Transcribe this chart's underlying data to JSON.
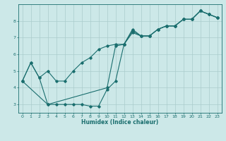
{
  "xlabel": "Humidex (Indice chaleur)",
  "background_color": "#cce8e8",
  "grid_color": "#aacccc",
  "line_color": "#1a6e6e",
  "xlim": [
    -0.5,
    23.5
  ],
  "ylim": [
    2.5,
    9.0
  ],
  "xticks": [
    0,
    1,
    2,
    3,
    4,
    5,
    6,
    7,
    8,
    9,
    10,
    11,
    12,
    13,
    14,
    15,
    16,
    17,
    18,
    19,
    20,
    21,
    22,
    23
  ],
  "yticks": [
    3,
    4,
    5,
    6,
    7,
    8
  ],
  "series": [
    {
      "x": [
        0,
        1,
        2,
        3,
        4,
        5,
        6,
        7,
        8,
        9,
        10,
        11,
        12,
        13,
        14,
        15,
        16,
        17,
        18,
        19,
        20,
        21,
        22,
        23
      ],
      "y": [
        4.4,
        5.5,
        4.6,
        5.0,
        4.4,
        4.4,
        5.0,
        5.5,
        5.8,
        6.3,
        6.5,
        6.6,
        6.6,
        7.5,
        7.1,
        7.1,
        7.5,
        7.7,
        7.7,
        8.1,
        8.1,
        8.6,
        8.4,
        8.2
      ]
    },
    {
      "x": [
        0,
        1,
        2,
        3,
        4,
        5,
        6,
        7,
        8,
        9,
        10,
        11,
        12,
        13,
        14,
        15,
        16,
        17,
        18,
        19,
        20,
        21,
        22,
        23
      ],
      "y": [
        4.4,
        5.5,
        4.6,
        3.0,
        3.0,
        3.0,
        3.0,
        3.0,
        2.9,
        2.9,
        3.9,
        4.4,
        6.6,
        7.3,
        7.1,
        7.1,
        7.5,
        7.7,
        7.7,
        8.1,
        8.1,
        8.6,
        8.4,
        8.2
      ]
    },
    {
      "x": [
        0,
        3,
        10,
        11,
        12,
        13,
        14,
        15,
        16,
        17,
        18,
        19,
        20,
        21,
        22,
        23
      ],
      "y": [
        4.4,
        3.0,
        4.0,
        6.5,
        6.6,
        7.4,
        7.1,
        7.1,
        7.5,
        7.7,
        7.7,
        8.1,
        8.1,
        8.6,
        8.4,
        8.2
      ]
    }
  ]
}
